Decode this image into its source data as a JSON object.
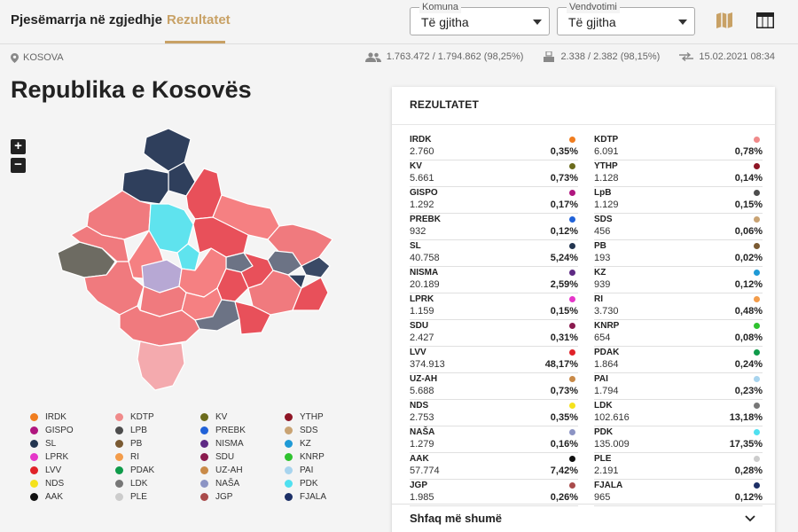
{
  "header": {
    "tabs": [
      {
        "label": "Pjesëmarrja në zgjedhje"
      },
      {
        "label": "Rezultatet"
      }
    ],
    "komuna": {
      "legend": "Komuna",
      "value": "Të gjitha"
    },
    "vendvotim": {
      "legend": "Vendvotimi",
      "value": "Të gjitha"
    }
  },
  "info": {
    "location": "KOSOVA",
    "voters": "1.763.472 / 1.794.862 (98,25%)",
    "stations": "2.338 / 2.382 (98,15%)",
    "updated": "15.02.2021 08:34"
  },
  "page_title": "Republika e Kosovës",
  "zoom": {
    "in": "+",
    "out": "−"
  },
  "results": {
    "title": "REZULTATET",
    "left": [
      {
        "name": "IRDK",
        "votes": "2.760",
        "pct": "0,35%",
        "color": "#f07d1f"
      },
      {
        "name": "KV",
        "votes": "5.661",
        "pct": "0,73%",
        "color": "#6b6b1c"
      },
      {
        "name": "GISPO",
        "votes": "1.292",
        "pct": "0,17%",
        "color": "#b0167f"
      },
      {
        "name": "PREBK",
        "votes": "932",
        "pct": "0,12%",
        "color": "#2162d8"
      },
      {
        "name": "SL",
        "votes": "40.758",
        "pct": "5,24%",
        "color": "#233550"
      },
      {
        "name": "NISMA",
        "votes": "20.189",
        "pct": "2,59%",
        "color": "#5e2a84"
      },
      {
        "name": "LPRK",
        "votes": "1.159",
        "pct": "0,15%",
        "color": "#e536c9"
      },
      {
        "name": "SDU",
        "votes": "2.427",
        "pct": "0,31%",
        "color": "#8a1a4e"
      },
      {
        "name": "LVV",
        "votes": "374.913",
        "pct": "48,17%",
        "color": "#e02229"
      },
      {
        "name": "UZ-AH",
        "votes": "5.688",
        "pct": "0,73%",
        "color": "#c98a48"
      },
      {
        "name": "NDS",
        "votes": "2.753",
        "pct": "0,35%",
        "color": "#f5e21c"
      },
      {
        "name": "NAŠA",
        "votes": "1.279",
        "pct": "0,16%",
        "color": "#8c94c4"
      },
      {
        "name": "AAK",
        "votes": "57.774",
        "pct": "7,42%",
        "color": "#111111"
      },
      {
        "name": "JGP",
        "votes": "1.985",
        "pct": "0,26%",
        "color": "#a94b4b"
      }
    ],
    "right": [
      {
        "name": "KDTP",
        "votes": "6.091",
        "pct": "0,78%",
        "color": "#f08a8a"
      },
      {
        "name": "YTHP",
        "votes": "1.128",
        "pct": "0,14%",
        "color": "#8e1525"
      },
      {
        "name": "LpB",
        "votes": "1.129",
        "pct": "0,15%",
        "color": "#4d4d4d"
      },
      {
        "name": "SDS",
        "votes": "456",
        "pct": "0,06%",
        "color": "#c9a373"
      },
      {
        "name": "PB",
        "votes": "193",
        "pct": "0,02%",
        "color": "#7a5a32"
      },
      {
        "name": "KZ",
        "votes": "939",
        "pct": "0,12%",
        "color": "#1f9ad6"
      },
      {
        "name": "RI",
        "votes": "3.730",
        "pct": "0,48%",
        "color": "#f39c4a"
      },
      {
        "name": "KNRP",
        "votes": "654",
        "pct": "0,08%",
        "color": "#2fc22f"
      },
      {
        "name": "PDAK",
        "votes": "1.864",
        "pct": "0,24%",
        "color": "#0f9b4a"
      },
      {
        "name": "PAI",
        "votes": "1.794",
        "pct": "0,23%",
        "color": "#a8d4ee"
      },
      {
        "name": "LDK",
        "votes": "102.616",
        "pct": "13,18%",
        "color": "#777777"
      },
      {
        "name": "PDK",
        "votes": "135.009",
        "pct": "17,35%",
        "color": "#4fe0f0"
      },
      {
        "name": "PLE",
        "votes": "2.191",
        "pct": "0,28%",
        "color": "#cccccc"
      },
      {
        "name": "FJALA",
        "votes": "965",
        "pct": "0,12%",
        "color": "#1c2f66"
      }
    ],
    "show_more": "Shfaq më shumë"
  },
  "legend": [
    [
      {
        "name": "IRDK",
        "color": "#f07d1f"
      },
      {
        "name": "GISPO",
        "color": "#b0167f"
      },
      {
        "name": "SL",
        "color": "#233550"
      },
      {
        "name": "LPRK",
        "color": "#e536c9"
      },
      {
        "name": "LVV",
        "color": "#e02229"
      },
      {
        "name": "NDS",
        "color": "#f5e21c"
      },
      {
        "name": "AAK",
        "color": "#111111"
      }
    ],
    [
      {
        "name": "KDTP",
        "color": "#f08a8a"
      },
      {
        "name": "LPB",
        "color": "#4d4d4d"
      },
      {
        "name": "PB",
        "color": "#7a5a32"
      },
      {
        "name": "RI",
        "color": "#f39c4a"
      },
      {
        "name": "PDAK",
        "color": "#0f9b4a"
      },
      {
        "name": "LDK",
        "color": "#777777"
      },
      {
        "name": "PLE",
        "color": "#cccccc"
      }
    ],
    [
      {
        "name": "KV",
        "color": "#6b6b1c"
      },
      {
        "name": "PREBK",
        "color": "#2162d8"
      },
      {
        "name": "NISMA",
        "color": "#5e2a84"
      },
      {
        "name": "SDU",
        "color": "#8a1a4e"
      },
      {
        "name": "UZ-AH",
        "color": "#c98a48"
      },
      {
        "name": "NAŠA",
        "color": "#8c94c4"
      },
      {
        "name": "JGP",
        "color": "#a94b4b"
      }
    ],
    [
      {
        "name": "YTHP",
        "color": "#8e1525"
      },
      {
        "name": "SDS",
        "color": "#c9a373"
      },
      {
        "name": "KZ",
        "color": "#1f9ad6"
      },
      {
        "name": "KNRP",
        "color": "#2fc22f"
      },
      {
        "name": "PAI",
        "color": "#a8d4ee"
      },
      {
        "name": "PDK",
        "color": "#4fe0f0"
      },
      {
        "name": "FJALA",
        "color": "#1c2f66"
      }
    ]
  ]
}
